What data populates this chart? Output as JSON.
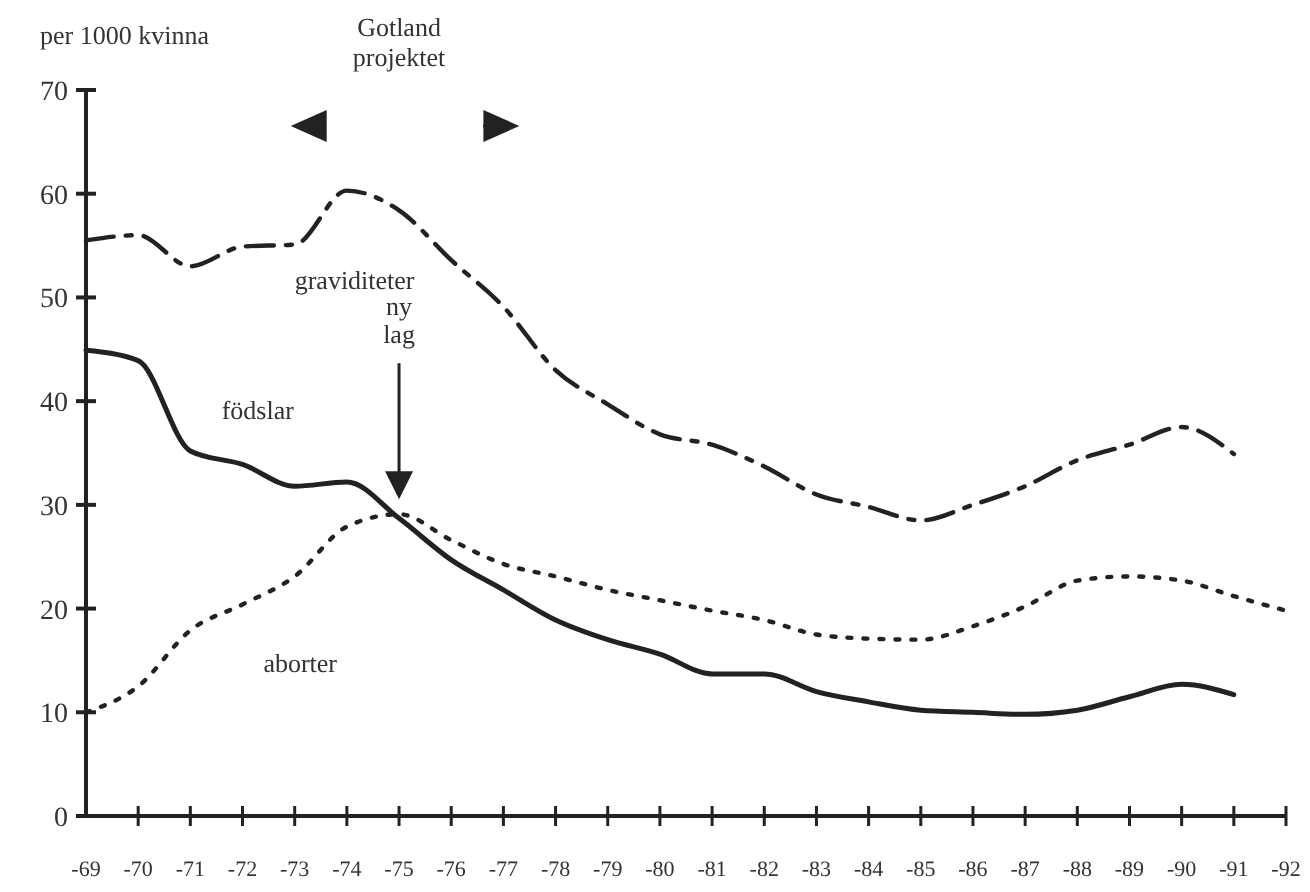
{
  "chart_data": {
    "type": "line",
    "ylabel": "per 1000 kvinna",
    "categories": [
      "-69",
      "-70",
      "-71",
      "-72",
      "-73",
      "-74",
      "-75",
      "-76",
      "-77",
      "-78",
      "-79",
      "-80",
      "-81",
      "-82",
      "-83",
      "-84",
      "-85",
      "-86",
      "-87",
      "-88",
      "-89",
      "-90",
      "-91",
      "-92"
    ],
    "series": [
      {
        "name": "graviditeter",
        "color": "#222222",
        "line_style": "dashed",
        "values": [
          55.5,
          56,
          53,
          54.9,
          55.1,
          60.3,
          58.4,
          53.6,
          49.1,
          43,
          39.7,
          36.8,
          35.8,
          33.7,
          31,
          29.8,
          28.5,
          30,
          31.8,
          34.3,
          35.8,
          37.5,
          34.9,
          null
        ]
      },
      {
        "name": "födslar",
        "color": "#222222",
        "line_style": "solid",
        "values": [
          44.9,
          43.9,
          35.2,
          33.9,
          31.8,
          32.2,
          28.7,
          24.7,
          21.8,
          18.9,
          17,
          15.6,
          13.7,
          13.7,
          12,
          11,
          10.2,
          10,
          9.8,
          10.2,
          11.5,
          12.7,
          11.7,
          null
        ]
      },
      {
        "name": "aborter",
        "color": "#222222",
        "line_style": "dotted",
        "values": [
          10,
          12.5,
          17.9,
          20.4,
          23.1,
          27.9,
          29.1,
          26.6,
          24.3,
          23.1,
          21.8,
          20.8,
          19.8,
          18.9,
          17.5,
          17.1,
          17,
          18.3,
          20.2,
          22.7,
          23.1,
          22.7,
          21.2,
          19.8
        ]
      }
    ],
    "ylim": [
      0,
      70
    ],
    "yticks": [
      0,
      10,
      20,
      30,
      40,
      50,
      60,
      70
    ],
    "grid": false,
    "marker": "none",
    "annotations": [
      "Gotland projektet",
      "ny lag"
    ]
  }
}
